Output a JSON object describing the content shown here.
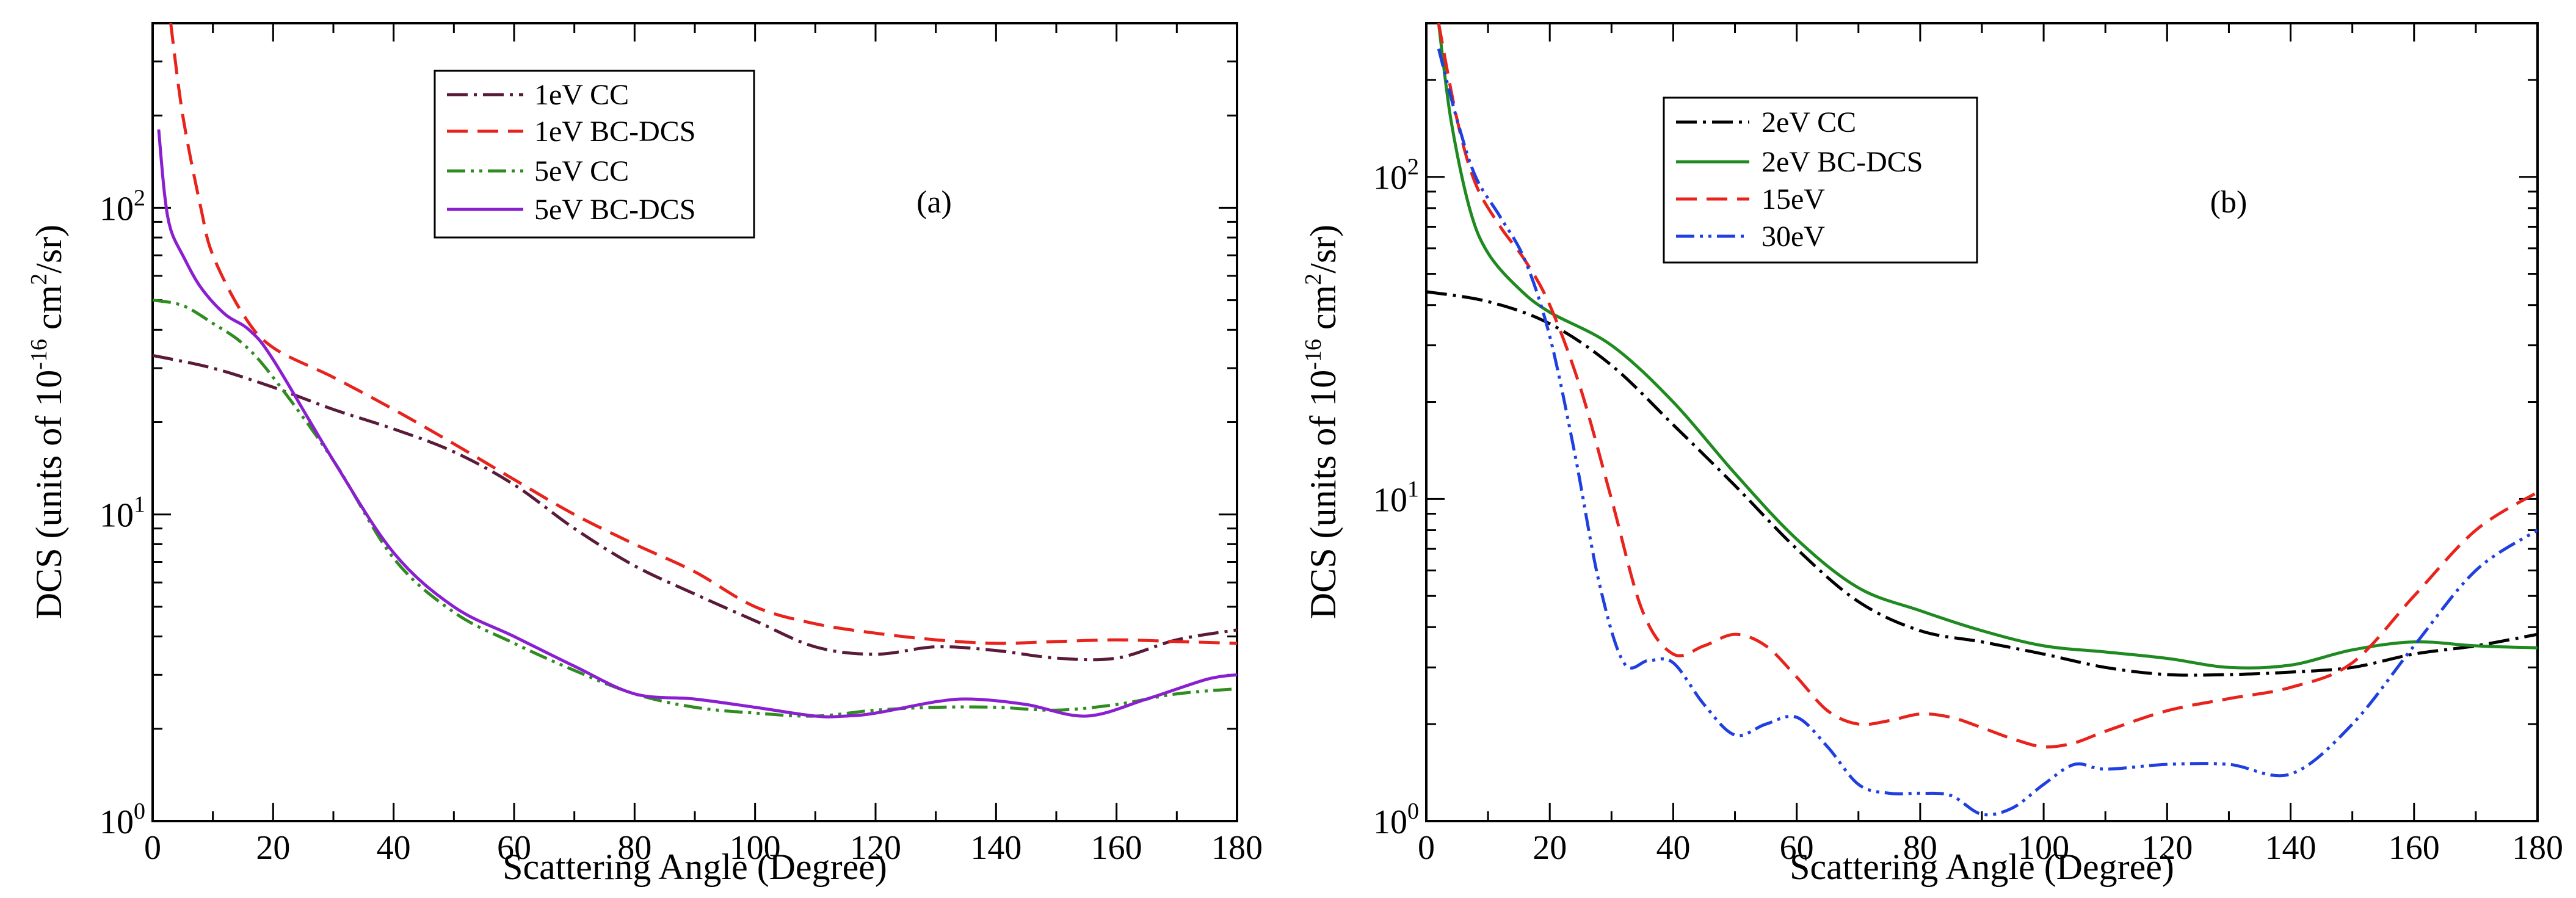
{
  "chart_data": [
    {
      "type": "line",
      "panel_label": "(a)",
      "xlabel": "Scattering Angle (Degree)",
      "ylabel_parts": [
        "DCS (units of 10",
        "-16",
        " cm",
        "2",
        "/sr)"
      ],
      "xlim": [
        0,
        180
      ],
      "ylim": [
        1,
        400
      ],
      "yscale": "log",
      "x_ticks": [
        0,
        20,
        40,
        60,
        80,
        100,
        120,
        140,
        160,
        180
      ],
      "x_tick_labels": [
        "0",
        "20",
        "40",
        "60",
        "80",
        "100",
        "120",
        "140",
        "160",
        "180"
      ],
      "y_ticks": [
        1,
        10,
        100
      ],
      "y_tick_labels": [
        {
          "base": "10",
          "exp": "0"
        },
        {
          "base": "10",
          "exp": "1"
        },
        {
          "base": "10",
          "exp": "2"
        }
      ],
      "legend_position": "top-center",
      "series": [
        {
          "name": "1eV CC",
          "color": "#5a1a3a",
          "dash": "dashdot",
          "x": [
            0,
            10,
            20,
            30,
            40,
            50,
            60,
            70,
            80,
            90,
            100,
            110,
            120,
            130,
            140,
            150,
            160,
            170,
            180
          ],
          "y": [
            33,
            30,
            26,
            22,
            19,
            16,
            12.5,
            9,
            6.8,
            5.5,
            4.5,
            3.7,
            3.5,
            3.7,
            3.6,
            3.4,
            3.4,
            3.9,
            4.2
          ]
        },
        {
          "name": "1eV BC-DCS",
          "color": "#e8231c",
          "dash": "dashed",
          "x": [
            3,
            5,
            8,
            10,
            15,
            20,
            30,
            40,
            50,
            60,
            70,
            80,
            90,
            100,
            110,
            120,
            130,
            140,
            150,
            160,
            170,
            180
          ],
          "y": [
            400,
            200,
            100,
            70,
            45,
            35,
            28,
            22,
            17,
            13,
            10,
            8,
            6.5,
            5.0,
            4.4,
            4.1,
            3.9,
            3.8,
            3.85,
            3.9,
            3.85,
            3.8
          ]
        },
        {
          "name": "5eV CC",
          "color": "#2f8c1f",
          "dash": "dashdotdot",
          "x": [
            0,
            5,
            10,
            15,
            20,
            30,
            40,
            50,
            60,
            70,
            80,
            90,
            100,
            110,
            120,
            130,
            140,
            150,
            160,
            170,
            180
          ],
          "y": [
            50,
            48,
            42,
            36,
            28,
            15,
            7.2,
            4.8,
            3.8,
            3.1,
            2.6,
            2.35,
            2.25,
            2.2,
            2.3,
            2.35,
            2.35,
            2.3,
            2.4,
            2.6,
            2.7
          ]
        },
        {
          "name": "5eV BC-DCS",
          "color": "#8a1fd1",
          "dash": "solid",
          "x": [
            1,
            2,
            3,
            5,
            8,
            12,
            16,
            20,
            30,
            40,
            50,
            60,
            70,
            80,
            90,
            100,
            110,
            115,
            120,
            130,
            136,
            145,
            155,
            165,
            175,
            180
          ],
          "y": [
            180,
            110,
            85,
            70,
            55,
            45,
            40,
            32,
            15,
            7.5,
            5.0,
            4.0,
            3.2,
            2.6,
            2.5,
            2.35,
            2.2,
            2.2,
            2.25,
            2.45,
            2.5,
            2.4,
            2.2,
            2.5,
            2.9,
            3.0
          ]
        }
      ]
    },
    {
      "type": "line",
      "panel_label": "(b)",
      "xlabel": "Scattering Angle (Degree)",
      "ylabel_parts": [
        "DCS (units of 10",
        "-16",
        " cm",
        "2",
        "/sr)"
      ],
      "xlim": [
        0,
        180
      ],
      "ylim": [
        1,
        300
      ],
      "yscale": "log",
      "x_ticks": [
        0,
        20,
        40,
        60,
        80,
        100,
        120,
        140,
        160,
        180
      ],
      "x_tick_labels": [
        "0",
        "20",
        "40",
        "60",
        "80",
        "100",
        "120",
        "140",
        "160",
        "180"
      ],
      "y_ticks": [
        1,
        10,
        100
      ],
      "y_tick_labels": [
        {
          "base": "10",
          "exp": "0"
        },
        {
          "base": "10",
          "exp": "1"
        },
        {
          "base": "10",
          "exp": "2"
        }
      ],
      "legend_position": "top-left",
      "series": [
        {
          "name": "2eV CC",
          "color": "#000000",
          "dash": "dashdot",
          "x": [
            0,
            10,
            20,
            30,
            40,
            50,
            60,
            70,
            80,
            90,
            100,
            110,
            120,
            130,
            140,
            150,
            160,
            170,
            180
          ],
          "y": [
            44,
            41,
            35,
            26,
            17,
            11,
            7,
            4.8,
            3.9,
            3.6,
            3.3,
            3.0,
            2.85,
            2.85,
            2.9,
            3.0,
            3.3,
            3.5,
            3.8
          ]
        },
        {
          "name": "2eV BC-DCS",
          "color": "#1f8a1f",
          "dash": "solid",
          "x": [
            2,
            4,
            7,
            10,
            15,
            20,
            30,
            40,
            50,
            60,
            70,
            80,
            90,
            100,
            110,
            120,
            130,
            140,
            150,
            160,
            170,
            180
          ],
          "y": [
            300,
            150,
            80,
            58,
            45,
            38,
            30,
            20,
            12,
            7.5,
            5.3,
            4.5,
            3.9,
            3.5,
            3.35,
            3.2,
            3.0,
            3.05,
            3.4,
            3.6,
            3.5,
            3.45
          ]
        },
        {
          "name": "15eV",
          "color": "#e8231c",
          "dash": "dashed",
          "x": [
            2,
            5,
            8,
            12,
            16,
            20,
            25,
            30,
            35,
            40,
            45,
            50,
            55,
            60,
            65,
            70,
            75,
            80,
            85,
            90,
            95,
            100,
            105,
            110,
            120,
            130,
            140,
            150,
            160,
            170,
            180
          ],
          "y": [
            300,
            150,
            95,
            70,
            55,
            40,
            22,
            10,
            4.5,
            3.3,
            3.5,
            3.8,
            3.5,
            2.8,
            2.2,
            2.0,
            2.05,
            2.15,
            2.1,
            1.95,
            1.8,
            1.7,
            1.75,
            1.9,
            2.2,
            2.4,
            2.6,
            3.1,
            5.0,
            8.0,
            10.5
          ]
        },
        {
          "name": "30eV",
          "color": "#1f3fe0",
          "dash": "dashdotdot",
          "x": [
            2,
            5,
            8,
            12,
            16,
            20,
            24,
            28,
            32,
            36,
            40,
            45,
            50,
            55,
            60,
            65,
            70,
            75,
            80,
            85,
            90,
            95,
            100,
            105,
            110,
            120,
            130,
            140,
            150,
            160,
            170,
            180
          ],
          "y": [
            250,
            150,
            100,
            75,
            55,
            32,
            14,
            5.5,
            3.1,
            3.15,
            3.1,
            2.3,
            1.85,
            2.0,
            2.1,
            1.7,
            1.3,
            1.22,
            1.22,
            1.2,
            1.05,
            1.1,
            1.3,
            1.5,
            1.45,
            1.5,
            1.5,
            1.4,
            2.0,
            3.5,
            6.0,
            8.0
          ]
        }
      ]
    }
  ]
}
